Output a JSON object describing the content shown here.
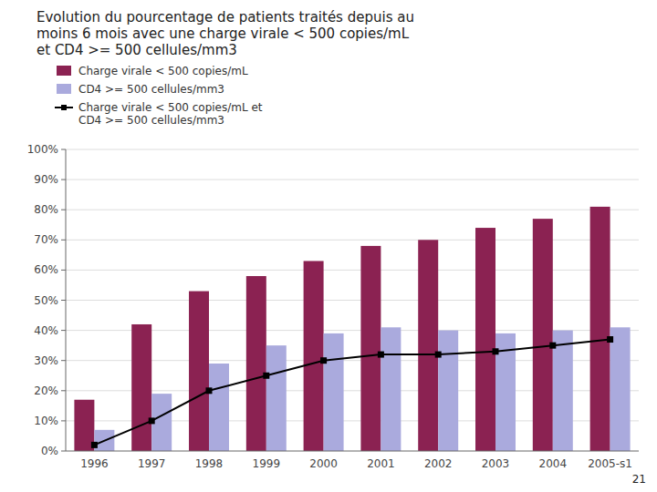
{
  "chart_data": {
    "type": "bar",
    "title": "Evolution du pourcentage de patients traités depuis au\nmoins 6 mois avec une charge virale < 500 copies/mL\net CD4 >= 500 cellules/mm3",
    "categories": [
      "1996",
      "1997",
      "1998",
      "1999",
      "2000",
      "2001",
      "2002",
      "2003",
      "2004",
      "2005-s1"
    ],
    "series": [
      {
        "name": "Charge virale < 500 copies/mL",
        "type": "bar",
        "color": "#8B2252",
        "values": [
          17,
          42,
          53,
          58,
          63,
          68,
          70,
          74,
          77,
          81
        ]
      },
      {
        "name": "CD4 >= 500 cellules/mm3",
        "type": "bar",
        "color": "#AAAADD",
        "values": [
          7,
          19,
          29,
          35,
          39,
          41,
          40,
          39,
          40,
          41
        ]
      },
      {
        "name": "Charge virale < 500 copies/mL et\nCD4 >= 500 cellules/mm3",
        "type": "line",
        "color": "#000000",
        "marker": "square",
        "values": [
          2,
          10,
          20,
          25,
          30,
          32,
          32,
          33,
          35,
          37
        ]
      }
    ],
    "ylim": [
      0,
      100
    ],
    "yticks": [
      {
        "value": 0,
        "label": "0%"
      },
      {
        "value": 10,
        "label": "10%"
      },
      {
        "value": 20,
        "label": "20%"
      },
      {
        "value": 30,
        "label": "30%"
      },
      {
        "value": 40,
        "label": "40%"
      },
      {
        "value": 50,
        "label": "50%"
      },
      {
        "value": 60,
        "label": "60%"
      },
      {
        "value": 70,
        "label": "70%"
      },
      {
        "value": 80,
        "label": "80%"
      },
      {
        "value": 90,
        "label": "90%"
      },
      {
        "value": 100,
        "label": "100%"
      }
    ],
    "grid": true,
    "legend": "top",
    "annotations": [
      "21"
    ]
  }
}
